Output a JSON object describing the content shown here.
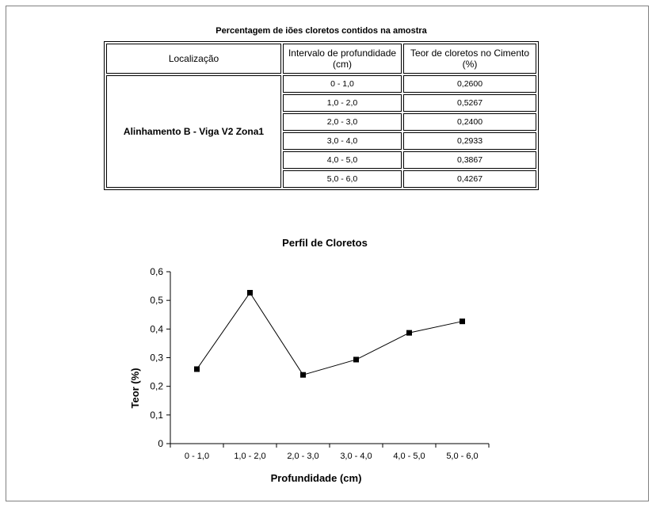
{
  "table": {
    "caption": "Percentagem de iões cloretos contidos na amostra",
    "headers": [
      "Localização",
      "Intervalo de profundidade (cm)",
      "Teor de cloretos no Cimento (%)"
    ],
    "location": "Alinhamento B - Viga V2 Zona1",
    "rows": [
      {
        "interval": "0 - 1,0",
        "value": "0,2600"
      },
      {
        "interval": "1,0 - 2,0",
        "value": "0,5267"
      },
      {
        "interval": "2,0 - 3,0",
        "value": "0,2400"
      },
      {
        "interval": "3,0 - 4,0",
        "value": "0,2933"
      },
      {
        "interval": "4,0 - 5,0",
        "value": "0,3867"
      },
      {
        "interval": "5,0 - 6,0",
        "value": "0,4267"
      }
    ]
  },
  "chart_data": {
    "type": "line",
    "title": "Perfil de Cloretos",
    "xlabel": "Profundidade (cm)",
    "ylabel": "Teor (%)",
    "categories": [
      "0 - 1,0",
      "1,0 - 2,0",
      "2,0 - 3,0",
      "3,0 - 4,0",
      "4,0 - 5,0",
      "5,0 - 6,0"
    ],
    "values": [
      0.26,
      0.5267,
      0.24,
      0.2933,
      0.3867,
      0.4267
    ],
    "ylim": [
      0,
      0.6
    ],
    "yticks": [
      "0",
      "0,1",
      "0,2",
      "0,3",
      "0,4",
      "0,5",
      "0,6"
    ],
    "marker": "square",
    "line_color": "#000000",
    "grid": false,
    "legend": false
  }
}
